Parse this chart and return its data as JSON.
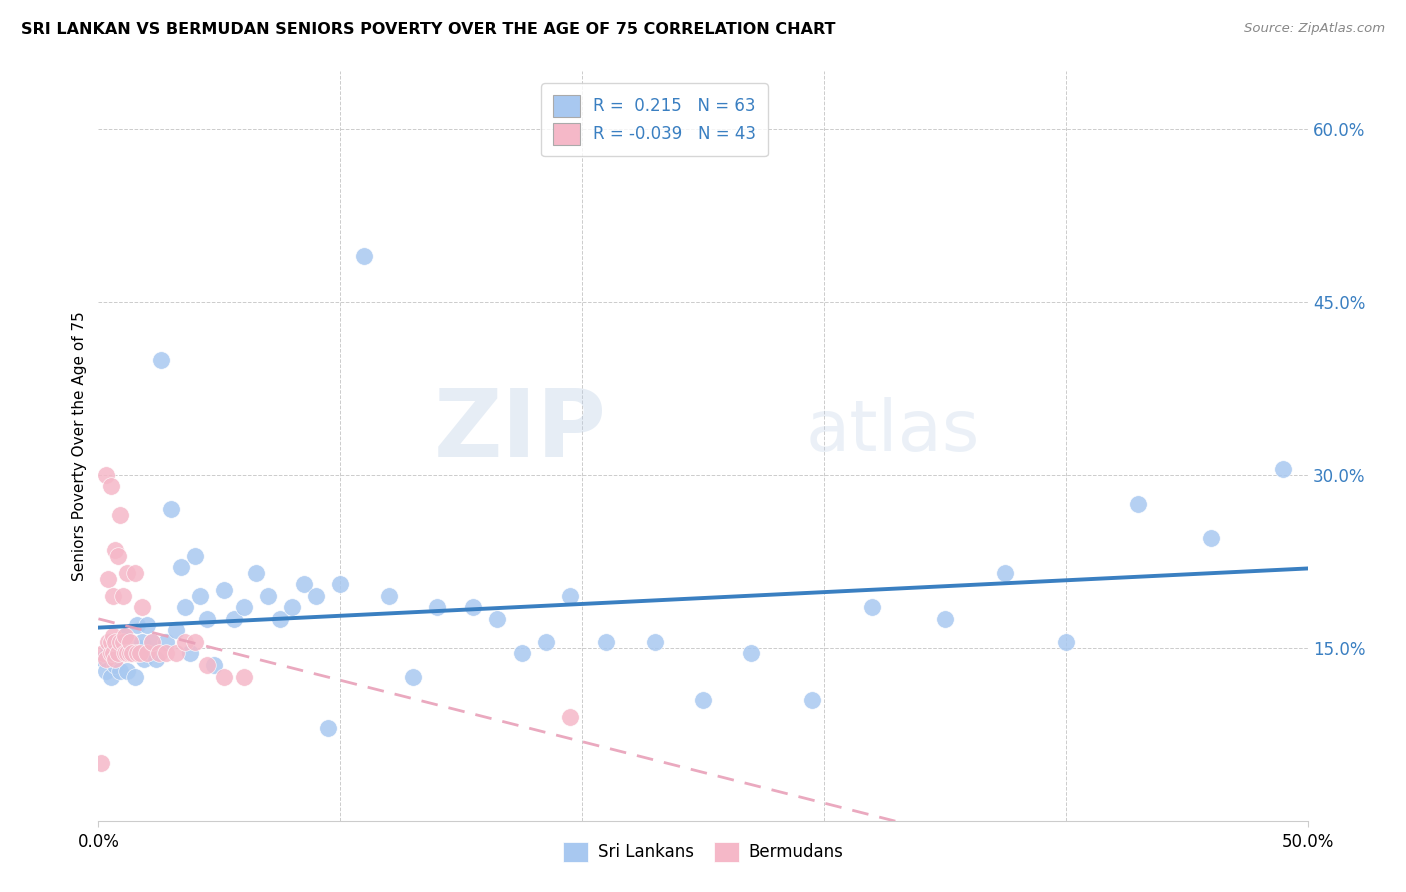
{
  "title": "SRI LANKAN VS BERMUDAN SENIORS POVERTY OVER THE AGE OF 75 CORRELATION CHART",
  "source": "Source: ZipAtlas.com",
  "ylabel": "Seniors Poverty Over the Age of 75",
  "xlim": [
    0.0,
    0.5
  ],
  "ylim": [
    0.0,
    0.65
  ],
  "y_ticks_right": [
    0.15,
    0.3,
    0.45,
    0.6
  ],
  "y_tick_labels_right": [
    "15.0%",
    "30.0%",
    "45.0%",
    "60.0%"
  ],
  "x_tick_vals": [
    0.0,
    0.5
  ],
  "x_tick_labels": [
    "0.0%",
    "50.0%"
  ],
  "legend_R_sri": " 0.215",
  "legend_N_sri": "63",
  "legend_R_ber": "-0.039",
  "legend_N_ber": "43",
  "sri_color": "#a8c8f0",
  "ber_color": "#f5b8c8",
  "sri_line_color": "#3a7fc1",
  "ber_line_color": "#e8a0b8",
  "watermark_zip": "ZIP",
  "watermark_atlas": "atlas",
  "sri_x": [
    0.002,
    0.003,
    0.004,
    0.005,
    0.006,
    0.007,
    0.008,
    0.009,
    0.01,
    0.011,
    0.012,
    0.013,
    0.015,
    0.016,
    0.017,
    0.018,
    0.019,
    0.02,
    0.022,
    0.024,
    0.026,
    0.028,
    0.03,
    0.032,
    0.034,
    0.036,
    0.038,
    0.04,
    0.042,
    0.045,
    0.048,
    0.052,
    0.056,
    0.06,
    0.065,
    0.07,
    0.075,
    0.08,
    0.085,
    0.09,
    0.095,
    0.1,
    0.11,
    0.12,
    0.13,
    0.14,
    0.155,
    0.165,
    0.175,
    0.185,
    0.195,
    0.21,
    0.23,
    0.25,
    0.27,
    0.295,
    0.32,
    0.35,
    0.375,
    0.4,
    0.43,
    0.46,
    0.49
  ],
  "sri_y": [
    0.14,
    0.13,
    0.145,
    0.125,
    0.15,
    0.135,
    0.155,
    0.13,
    0.145,
    0.16,
    0.13,
    0.15,
    0.125,
    0.17,
    0.15,
    0.155,
    0.14,
    0.17,
    0.155,
    0.14,
    0.4,
    0.155,
    0.27,
    0.165,
    0.22,
    0.185,
    0.145,
    0.23,
    0.195,
    0.175,
    0.135,
    0.2,
    0.175,
    0.185,
    0.215,
    0.195,
    0.175,
    0.185,
    0.205,
    0.195,
    0.08,
    0.205,
    0.49,
    0.195,
    0.125,
    0.185,
    0.185,
    0.175,
    0.145,
    0.155,
    0.195,
    0.155,
    0.155,
    0.105,
    0.145,
    0.105,
    0.185,
    0.175,
    0.215,
    0.155,
    0.275,
    0.245,
    0.305
  ],
  "ber_x": [
    0.001,
    0.002,
    0.003,
    0.003,
    0.004,
    0.004,
    0.005,
    0.005,
    0.005,
    0.006,
    0.006,
    0.006,
    0.007,
    0.007,
    0.007,
    0.008,
    0.008,
    0.009,
    0.009,
    0.01,
    0.01,
    0.011,
    0.011,
    0.012,
    0.012,
    0.013,
    0.013,
    0.014,
    0.015,
    0.016,
    0.017,
    0.018,
    0.02,
    0.022,
    0.025,
    0.028,
    0.032,
    0.036,
    0.04,
    0.045,
    0.052,
    0.06,
    0.195
  ],
  "ber_y": [
    0.05,
    0.145,
    0.14,
    0.3,
    0.155,
    0.21,
    0.145,
    0.155,
    0.29,
    0.145,
    0.16,
    0.195,
    0.14,
    0.155,
    0.235,
    0.145,
    0.23,
    0.155,
    0.265,
    0.155,
    0.195,
    0.145,
    0.16,
    0.145,
    0.215,
    0.145,
    0.155,
    0.145,
    0.215,
    0.145,
    0.145,
    0.185,
    0.145,
    0.155,
    0.145,
    0.145,
    0.145,
    0.155,
    0.155,
    0.135,
    0.125,
    0.125,
    0.09
  ]
}
